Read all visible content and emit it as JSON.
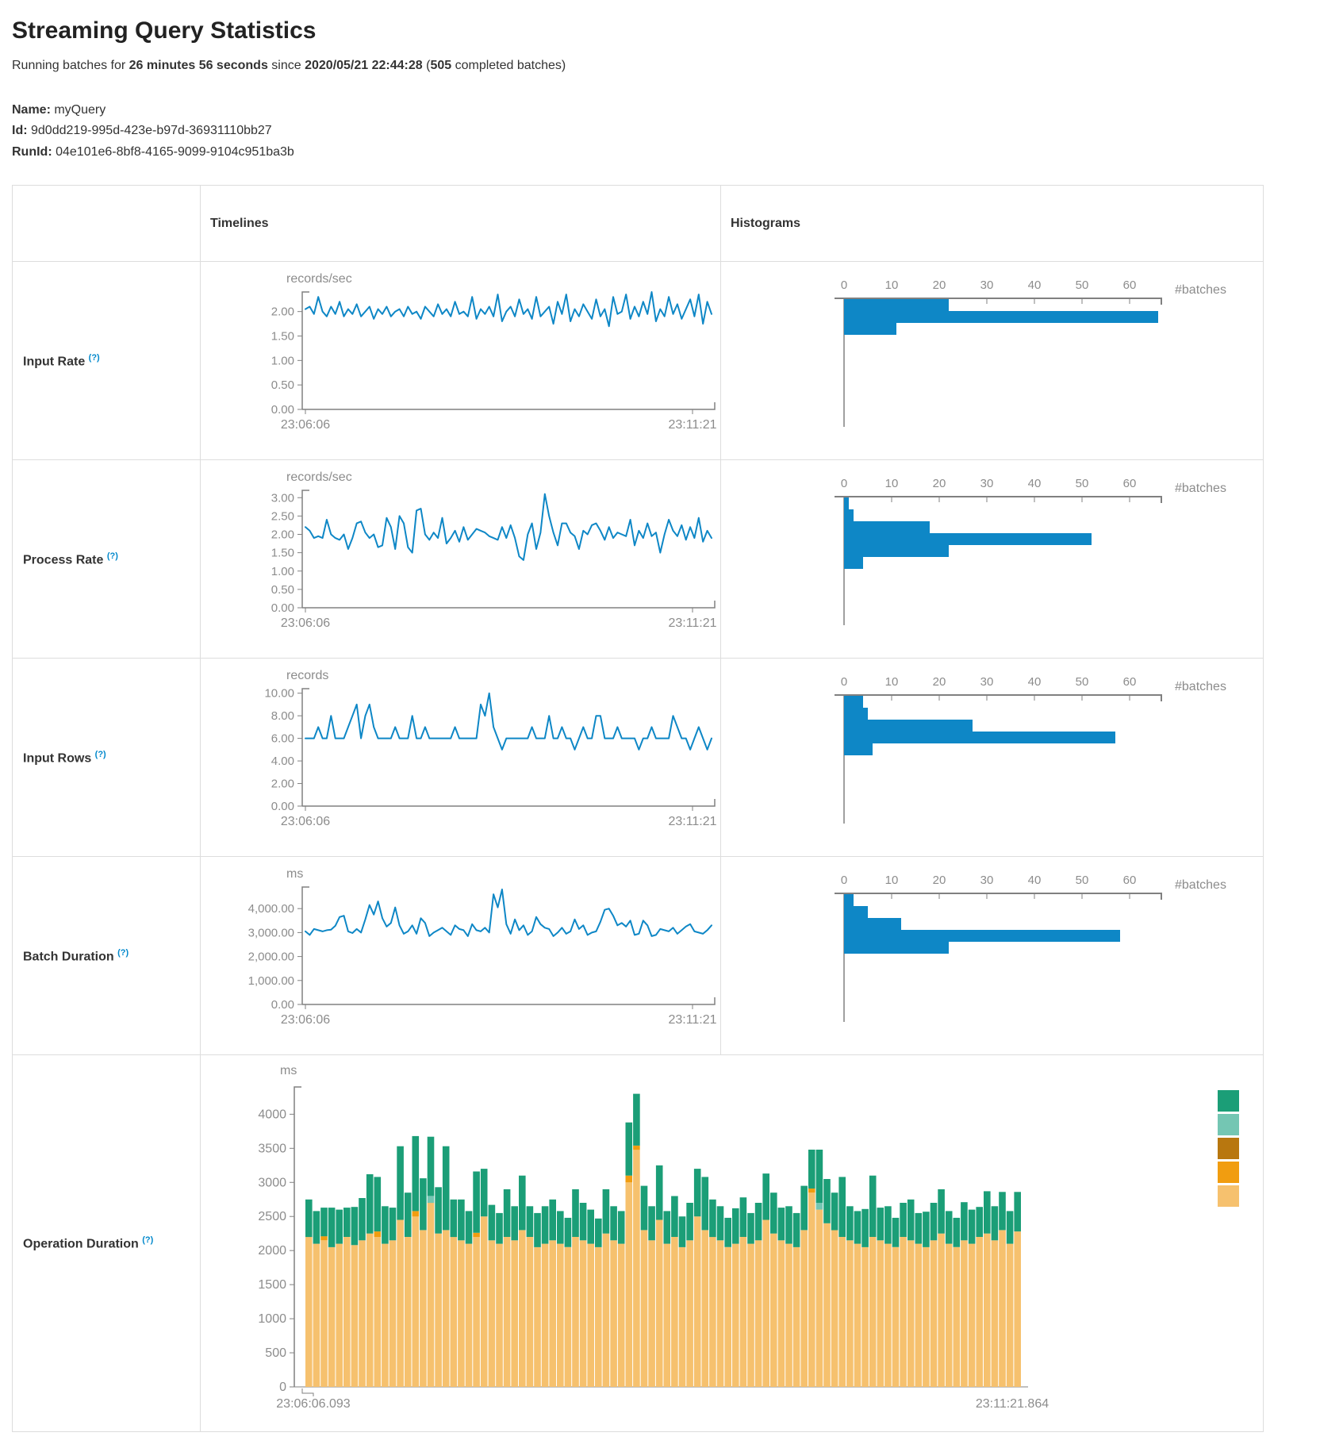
{
  "page": {
    "title": "Streaming Query Statistics"
  },
  "summary": {
    "prefix": "Running batches for ",
    "duration": "26 minutes 56 seconds",
    "since_word": " since ",
    "start_time": "2020/05/21 22:44:28",
    "paren_open": " (",
    "batch_count": "505",
    "suffix": " completed batches)"
  },
  "query_info": {
    "name_label": "Name:",
    "name": " myQuery",
    "id_label": "Id:",
    "id": " 9d0dd219-995d-423e-b97d-36931110bb27",
    "run_id_label": "RunId:",
    "run_id": " 04e101e6-8bf8-4165-9099-9104c951ba3b"
  },
  "table": {
    "col_timelines": "Timelines",
    "col_histograms": "Histograms",
    "rows": [
      {
        "label": "Input Rate",
        "help": "(?)"
      },
      {
        "label": "Process Rate",
        "help": "(?)"
      },
      {
        "label": "Input Rows",
        "help": "(?)"
      },
      {
        "label": "Batch Duration",
        "help": "(?)"
      },
      {
        "label": "Operation Duration",
        "help": "(?)"
      }
    ]
  },
  "colors": {
    "line_blue": "#0e87c6",
    "axis_line": "#808080",
    "tick_text": "#8c8c8c",
    "help_blue": "#0088cc",
    "border_gray": "#dddddd"
  },
  "chart_data": [
    {
      "type": "line",
      "row": "input-rate",
      "unit": "records/sec",
      "x_start": "23:06:06",
      "x_end": "23:11:21",
      "ymax": 2.4,
      "yticks": [
        {
          "v": 0,
          "t": "0.00"
        },
        {
          "v": 0.5,
          "t": "0.50"
        },
        {
          "v": 1.0,
          "t": "1.00"
        },
        {
          "v": 1.5,
          "t": "1.50"
        },
        {
          "v": 2.0,
          "t": "2.00"
        }
      ],
      "values": [
        2.05,
        2.1,
        1.95,
        2.3,
        2.0,
        1.9,
        2.1,
        1.95,
        2.2,
        1.9,
        2.05,
        1.95,
        2.15,
        1.9,
        2.0,
        2.1,
        1.85,
        2.05,
        1.95,
        2.1,
        1.9,
        2.0,
        2.05,
        1.9,
        2.1,
        1.95,
        2.0,
        1.85,
        2.1,
        2.0,
        1.9,
        2.15,
        1.95,
        2.05,
        1.9,
        2.2,
        1.95,
        2.0,
        1.9,
        2.3,
        1.85,
        2.05,
        1.95,
        2.1,
        1.9,
        2.35,
        1.8,
        2.0,
        2.1,
        1.9,
        2.25,
        1.95,
        2.05,
        1.85,
        2.3,
        1.9,
        2.0,
        2.1,
        1.75,
        2.2,
        1.95,
        2.35,
        1.8,
        2.05,
        1.9,
        2.15,
        2.0,
        1.85,
        2.25,
        1.9,
        2.05,
        1.7,
        2.3,
        1.95,
        2.0,
        2.35,
        1.85,
        2.1,
        1.9,
        2.2,
        1.95,
        2.4,
        1.8,
        2.05,
        1.9,
        2.3,
        1.95,
        2.15,
        1.85,
        2.05,
        2.25,
        1.9,
        2.35,
        1.75,
        2.2,
        1.95
      ]
    },
    {
      "type": "hbar",
      "row": "input-rate",
      "xlabel": "#batches",
      "xticks": [
        0,
        10,
        20,
        30,
        40,
        50,
        60
      ],
      "xmax": 66,
      "counts": [
        22,
        66,
        11
      ]
    },
    {
      "type": "line",
      "row": "process-rate",
      "unit": "records/sec",
      "x_start": "23:06:06",
      "x_end": "23:11:21",
      "ymax": 3.2,
      "yticks": [
        {
          "v": 0,
          "t": "0.00"
        },
        {
          "v": 0.5,
          "t": "0.50"
        },
        {
          "v": 1.0,
          "t": "1.00"
        },
        {
          "v": 1.5,
          "t": "1.50"
        },
        {
          "v": 2.0,
          "t": "2.00"
        },
        {
          "v": 2.5,
          "t": "2.50"
        },
        {
          "v": 3.0,
          "t": "3.00"
        }
      ],
      "values": [
        2.2,
        2.1,
        1.9,
        1.95,
        1.9,
        2.4,
        2.0,
        1.9,
        1.85,
        2.0,
        1.6,
        1.9,
        2.3,
        2.35,
        2.05,
        1.9,
        2.0,
        1.65,
        1.7,
        2.45,
        2.2,
        1.6,
        2.5,
        2.3,
        1.65,
        1.5,
        2.65,
        2.7,
        2.0,
        1.85,
        2.05,
        1.9,
        2.45,
        1.75,
        1.9,
        2.1,
        1.8,
        2.2,
        1.85,
        2.0,
        2.15,
        2.1,
        2.05,
        1.95,
        1.9,
        1.85,
        2.2,
        1.9,
        2.25,
        1.9,
        1.4,
        1.3,
        2.0,
        2.3,
        1.6,
        2.05,
        3.1,
        2.5,
        2.05,
        1.7,
        2.3,
        2.3,
        2.05,
        1.95,
        1.6,
        2.1,
        2.0,
        2.25,
        2.3,
        2.1,
        1.85,
        2.2,
        1.9,
        2.05,
        2.0,
        1.95,
        2.4,
        1.7,
        2.1,
        1.9,
        2.3,
        1.95,
        2.05,
        1.5,
        2.0,
        2.4,
        2.1,
        1.95,
        2.25,
        1.85,
        2.2,
        1.9,
        2.45,
        1.8,
        2.1,
        1.9
      ]
    },
    {
      "type": "hbar",
      "row": "process-rate",
      "xlabel": "#batches",
      "xticks": [
        0,
        10,
        20,
        30,
        40,
        50,
        60
      ],
      "xmax": 66,
      "counts": [
        1,
        2,
        18,
        52,
        22,
        4
      ]
    },
    {
      "type": "line",
      "row": "input-rows",
      "unit": "records",
      "x_start": "23:06:06",
      "x_end": "23:11:21",
      "ymax": 10.4,
      "yticks": [
        {
          "v": 0,
          "t": "0.00"
        },
        {
          "v": 2,
          "t": "2.00"
        },
        {
          "v": 4,
          "t": "4.00"
        },
        {
          "v": 6,
          "t": "6.00"
        },
        {
          "v": 8,
          "t": "8.00"
        },
        {
          "v": 10,
          "t": "10.00"
        }
      ],
      "values": [
        6,
        6,
        6,
        7,
        6,
        6,
        8,
        6,
        6,
        6,
        7,
        8,
        9,
        6,
        8,
        9,
        7,
        6,
        6,
        6,
        6,
        7,
        6,
        6,
        6,
        8,
        6,
        6,
        7,
        6,
        6,
        6,
        6,
        6,
        6,
        7,
        6,
        6,
        6,
        6,
        6,
        9,
        8,
        10,
        7,
        6,
        5,
        6,
        6,
        6,
        6,
        6,
        6,
        7,
        6,
        6,
        6,
        8,
        6,
        6,
        7,
        6,
        6,
        5,
        6,
        7,
        6,
        6,
        8,
        8,
        6,
        6,
        6,
        7,
        6,
        6,
        6,
        6,
        5,
        6,
        6,
        7,
        6,
        6,
        6,
        6,
        8,
        7,
        6,
        6,
        5,
        6,
        7,
        6,
        5,
        6
      ]
    },
    {
      "type": "hbar",
      "row": "input-rows",
      "xlabel": "#batches",
      "xticks": [
        0,
        10,
        20,
        30,
        40,
        50,
        60
      ],
      "xmax": 66,
      "counts": [
        4,
        5,
        27,
        57,
        6
      ]
    },
    {
      "type": "line",
      "row": "batch-duration",
      "unit": "ms",
      "x_start": "23:06:06",
      "x_end": "23:11:21",
      "ymax": 4900,
      "yticks": [
        {
          "v": 0,
          "t": "0.00"
        },
        {
          "v": 1000,
          "t": "1,000.00"
        },
        {
          "v": 2000,
          "t": "2,000.00"
        },
        {
          "v": 3000,
          "t": "3,000.00"
        },
        {
          "v": 4000,
          "t": "4,000.00"
        }
      ],
      "values": [
        3050,
        2900,
        3150,
        3100,
        3050,
        3100,
        3120,
        3280,
        3650,
        3700,
        3050,
        2980,
        3150,
        3000,
        3550,
        4150,
        3750,
        4300,
        3600,
        3250,
        3400,
        4050,
        3300,
        2950,
        3050,
        3300,
        2950,
        3600,
        3400,
        2850,
        3000,
        3100,
        3200,
        3050,
        2900,
        3300,
        3150,
        3100,
        2850,
        3350,
        3100,
        3050,
        3200,
        3000,
        4600,
        4050,
        4800,
        3350,
        2950,
        3550,
        3100,
        3300,
        2900,
        3050,
        3650,
        3350,
        3200,
        3150,
        2850,
        3000,
        3200,
        2950,
        3050,
        3550,
        3150,
        3300,
        2900,
        3000,
        3050,
        3450,
        3950,
        4000,
        3700,
        3300,
        3400,
        3250,
        3500,
        2900,
        2950,
        3500,
        3300,
        2850,
        2900,
        3150,
        3100,
        3050,
        3200,
        2950,
        3100,
        3250,
        3350,
        3050,
        3000,
        2950,
        3100,
        3300
      ]
    },
    {
      "type": "hbar",
      "row": "batch-duration",
      "xlabel": "#batches",
      "xticks": [
        0,
        10,
        20,
        30,
        40,
        50,
        60
      ],
      "xmax": 66,
      "counts": [
        2,
        5,
        12,
        58,
        22
      ]
    },
    {
      "type": "stacked-bar",
      "row": "operation-duration",
      "unit": "ms",
      "x_start": "23:06:06.093",
      "x_end": "23:11:21.864",
      "ymax": 4400,
      "yticks": [
        {
          "v": 0,
          "t": "0"
        },
        {
          "v": 500,
          "t": "500"
        },
        {
          "v": 1000,
          "t": "1000"
        },
        {
          "v": 1500,
          "t": "1500"
        },
        {
          "v": 2000,
          "t": "2000"
        },
        {
          "v": 2500,
          "t": "2500"
        },
        {
          "v": 3000,
          "t": "3000"
        },
        {
          "v": 3500,
          "t": "3500"
        },
        {
          "v": 4000,
          "t": "4000"
        }
      ],
      "legend_colors": [
        "#1b9e77",
        "#74c6b3",
        "#b8770f",
        "#f19d10",
        "#f6c16e"
      ],
      "stack_colors_bottom_up": [
        "#f6c16e",
        "#f19d10",
        "#b8770f",
        "#74c6b3",
        "#1b9e77"
      ],
      "bars": [
        [
          2200,
          0,
          0,
          0,
          550
        ],
        [
          2100,
          0,
          0,
          0,
          480
        ],
        [
          2150,
          60,
          0,
          0,
          420
        ],
        [
          2050,
          0,
          0,
          0,
          580
        ],
        [
          2100,
          0,
          0,
          0,
          500
        ],
        [
          2200,
          0,
          0,
          0,
          430
        ],
        [
          2080,
          0,
          0,
          0,
          560
        ],
        [
          2150,
          0,
          0,
          0,
          620
        ],
        [
          2250,
          0,
          0,
          0,
          870
        ],
        [
          2200,
          80,
          0,
          0,
          800
        ],
        [
          2100,
          0,
          0,
          0,
          550
        ],
        [
          2150,
          0,
          0,
          0,
          480
        ],
        [
          2450,
          0,
          0,
          0,
          1080
        ],
        [
          2200,
          0,
          0,
          0,
          650
        ],
        [
          2500,
          80,
          0,
          0,
          1100
        ],
        [
          2300,
          0,
          0,
          0,
          760
        ],
        [
          2700,
          0,
          0,
          100,
          870
        ],
        [
          2250,
          0,
          0,
          0,
          680
        ],
        [
          2300,
          0,
          0,
          0,
          1230
        ],
        [
          2200,
          0,
          0,
          0,
          550
        ],
        [
          2150,
          0,
          0,
          0,
          600
        ],
        [
          2100,
          0,
          0,
          0,
          480
        ],
        [
          2200,
          60,
          0,
          0,
          900
        ],
        [
          2500,
          0,
          0,
          0,
          700
        ],
        [
          2150,
          0,
          0,
          0,
          520
        ],
        [
          2100,
          0,
          0,
          0,
          450
        ],
        [
          2200,
          0,
          0,
          0,
          700
        ],
        [
          2150,
          0,
          0,
          0,
          500
        ],
        [
          2300,
          0,
          0,
          0,
          800
        ],
        [
          2200,
          0,
          0,
          0,
          450
        ],
        [
          2050,
          0,
          0,
          0,
          500
        ],
        [
          2100,
          0,
          0,
          0,
          550
        ],
        [
          2150,
          0,
          0,
          0,
          600
        ],
        [
          2100,
          0,
          0,
          0,
          480
        ],
        [
          2050,
          0,
          0,
          0,
          430
        ],
        [
          2200,
          0,
          0,
          0,
          700
        ],
        [
          2150,
          0,
          0,
          0,
          550
        ],
        [
          2100,
          0,
          0,
          0,
          500
        ],
        [
          2050,
          0,
          0,
          0,
          420
        ],
        [
          2250,
          0,
          0,
          0,
          650
        ],
        [
          2150,
          0,
          0,
          0,
          500
        ],
        [
          2100,
          0,
          0,
          0,
          480
        ],
        [
          3000,
          100,
          0,
          0,
          780
        ],
        [
          3480,
          60,
          0,
          0,
          760
        ],
        [
          2300,
          0,
          0,
          0,
          650
        ],
        [
          2150,
          0,
          0,
          0,
          500
        ],
        [
          2450,
          0,
          0,
          0,
          800
        ],
        [
          2100,
          0,
          0,
          0,
          480
        ],
        [
          2200,
          0,
          0,
          0,
          600
        ],
        [
          2050,
          0,
          0,
          0,
          450
        ],
        [
          2150,
          0,
          0,
          0,
          550
        ],
        [
          2500,
          0,
          0,
          0,
          700
        ],
        [
          2300,
          0,
          0,
          0,
          780
        ],
        [
          2200,
          0,
          0,
          0,
          550
        ],
        [
          2150,
          0,
          0,
          0,
          500
        ],
        [
          2050,
          0,
          0,
          0,
          430
        ],
        [
          2100,
          0,
          0,
          0,
          520
        ],
        [
          2200,
          0,
          0,
          0,
          580
        ],
        [
          2100,
          0,
          0,
          0,
          450
        ],
        [
          2150,
          0,
          0,
          0,
          550
        ],
        [
          2450,
          0,
          0,
          0,
          680
        ],
        [
          2250,
          0,
          0,
          0,
          600
        ],
        [
          2150,
          0,
          0,
          0,
          480
        ],
        [
          2100,
          0,
          0,
          0,
          550
        ],
        [
          2050,
          0,
          0,
          0,
          500
        ],
        [
          2300,
          0,
          0,
          0,
          650
        ],
        [
          2850,
          60,
          0,
          0,
          570
        ],
        [
          2600,
          0,
          0,
          100,
          780
        ],
        [
          2400,
          0,
          0,
          0,
          650
        ],
        [
          2300,
          0,
          0,
          0,
          550
        ],
        [
          2200,
          0,
          0,
          0,
          880
        ],
        [
          2150,
          0,
          0,
          0,
          500
        ],
        [
          2100,
          0,
          0,
          0,
          480
        ],
        [
          2050,
          0,
          0,
          0,
          560
        ],
        [
          2200,
          0,
          0,
          0,
          900
        ],
        [
          2150,
          0,
          0,
          0,
          480
        ],
        [
          2100,
          0,
          0,
          0,
          550
        ],
        [
          2050,
          0,
          0,
          0,
          430
        ],
        [
          2200,
          0,
          0,
          0,
          500
        ],
        [
          2150,
          0,
          0,
          0,
          600
        ],
        [
          2100,
          0,
          0,
          0,
          450
        ],
        [
          2050,
          0,
          0,
          0,
          520
        ],
        [
          2150,
          0,
          0,
          0,
          550
        ],
        [
          2250,
          0,
          0,
          0,
          650
        ],
        [
          2100,
          0,
          0,
          0,
          480
        ],
        [
          2050,
          0,
          0,
          0,
          430
        ],
        [
          2150,
          0,
          0,
          0,
          560
        ],
        [
          2100,
          0,
          0,
          0,
          500
        ],
        [
          2200,
          0,
          0,
          0,
          440
        ],
        [
          2250,
          0,
          0,
          0,
          620
        ],
        [
          2150,
          0,
          0,
          0,
          500
        ],
        [
          2300,
          0,
          0,
          0,
          560
        ],
        [
          2100,
          0,
          0,
          0,
          480
        ],
        [
          2280,
          0,
          0,
          0,
          580
        ]
      ]
    }
  ]
}
